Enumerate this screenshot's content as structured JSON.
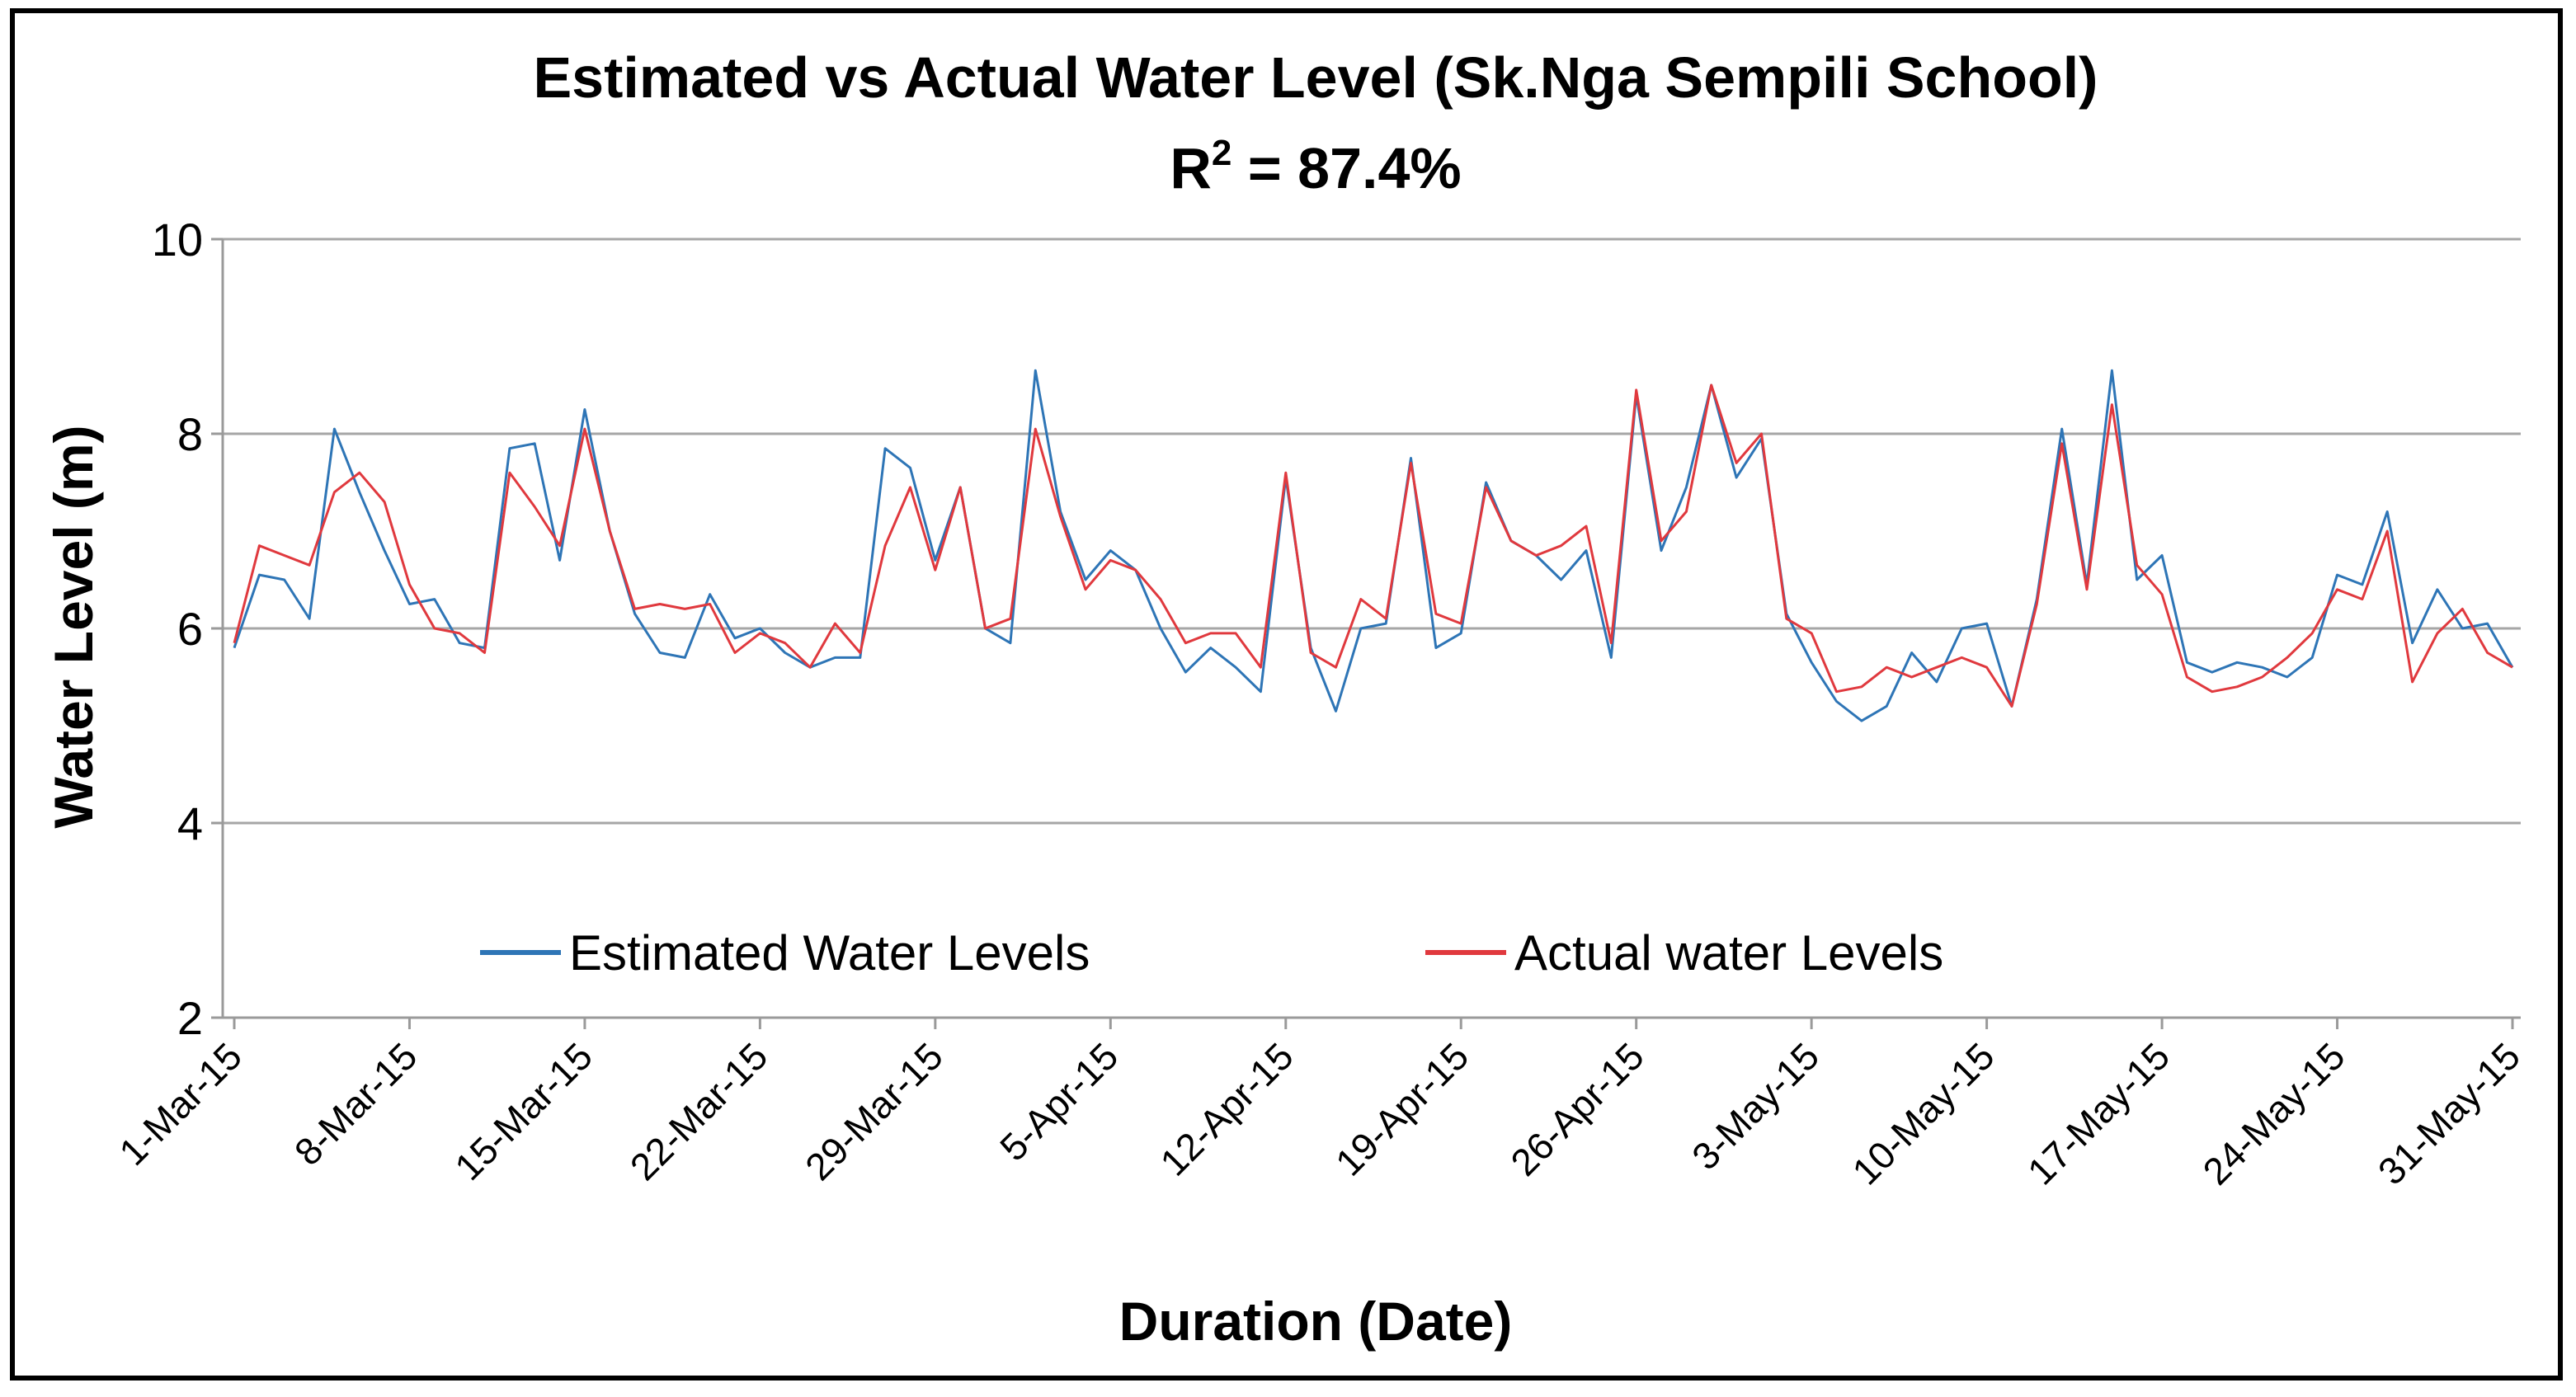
{
  "chart_data": {
    "type": "line",
    "title": "Estimated vs Actual Water Level  (Sk.Nga Sempili School)",
    "subtitle": "R² = 87.4%",
    "subtitle_parts": {
      "base": "R",
      "sup": "2",
      "rest": " = 87.4%"
    },
    "xlabel": "Duration  (Date)",
    "ylabel": "Water Level (m)",
    "ylim": [
      2,
      10
    ],
    "yticks": [
      "2",
      "4",
      "6",
      "8",
      "10"
    ],
    "grid": true,
    "legend_position": "inside-bottom-center",
    "x_start": "1-Mar-15",
    "x_end": "31-May-15",
    "xtick_labels": [
      "1-Mar-15",
      "8-Mar-15",
      "15-Mar-15",
      "22-Mar-15",
      "29-Mar-15",
      "5-Apr-15",
      "12-Apr-15",
      "19-Apr-15",
      "26-Apr-15",
      "3-May-15",
      "10-May-15",
      "17-May-15",
      "24-May-15",
      "31-May-15"
    ],
    "series": [
      {
        "name": "Estimated Water Levels",
        "color": "#2e75b6",
        "values": [
          5.8,
          6.55,
          6.5,
          6.1,
          8.05,
          7.4,
          6.8,
          6.25,
          6.3,
          5.85,
          5.8,
          7.85,
          7.9,
          6.7,
          8.25,
          7.0,
          6.15,
          5.75,
          5.7,
          6.35,
          5.9,
          6.0,
          5.75,
          5.6,
          5.7,
          5.7,
          7.85,
          7.65,
          6.7,
          7.45,
          6.0,
          5.85,
          8.65,
          7.2,
          6.5,
          6.8,
          6.6,
          6.0,
          5.55,
          5.8,
          5.6,
          5.35,
          7.55,
          5.8,
          5.15,
          6.0,
          6.05,
          7.75,
          5.8,
          5.95,
          7.5,
          6.9,
          6.75,
          6.5,
          6.8,
          5.7,
          8.4,
          6.8,
          7.45,
          8.5,
          7.55,
          7.95,
          6.15,
          5.65,
          5.25,
          5.05,
          5.2,
          5.75,
          5.45,
          6.0,
          6.05,
          5.2,
          6.3,
          8.05,
          6.45,
          8.65,
          6.5,
          6.75,
          5.65,
          5.55,
          5.65,
          5.6,
          5.5,
          5.7,
          6.55,
          6.45,
          7.2,
          5.85,
          6.4,
          6.0,
          6.05,
          5.6
        ],
        "line_width": 3
      },
      {
        "name": "Actual water Levels",
        "color": "#e0393e",
        "values": [
          5.85,
          6.85,
          6.75,
          6.65,
          7.4,
          7.6,
          7.3,
          6.45,
          6.0,
          5.95,
          5.75,
          7.6,
          7.25,
          6.85,
          8.05,
          7.0,
          6.2,
          6.25,
          6.2,
          6.25,
          5.75,
          5.95,
          5.85,
          5.6,
          6.05,
          5.75,
          6.85,
          7.45,
          6.6,
          7.45,
          6.0,
          6.1,
          8.05,
          7.15,
          6.4,
          6.7,
          6.6,
          6.3,
          5.85,
          5.95,
          5.95,
          5.6,
          7.6,
          5.75,
          5.6,
          6.3,
          6.1,
          7.7,
          6.15,
          6.05,
          7.45,
          6.9,
          6.75,
          6.85,
          7.05,
          5.85,
          8.45,
          6.9,
          7.2,
          8.5,
          7.7,
          8.0,
          6.1,
          5.95,
          5.35,
          5.4,
          5.6,
          5.5,
          5.6,
          5.7,
          5.6,
          5.2,
          6.25,
          7.9,
          6.4,
          8.3,
          6.65,
          6.35,
          5.5,
          5.35,
          5.4,
          5.5,
          5.7,
          5.95,
          6.4,
          6.3,
          7.0,
          5.45,
          5.95,
          6.2,
          5.75,
          5.6
        ],
        "line_width": 3
      }
    ]
  }
}
